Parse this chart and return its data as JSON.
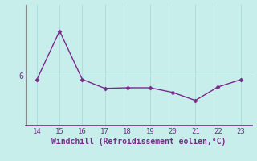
{
  "x": [
    14,
    15,
    16,
    17,
    18,
    19,
    20,
    21,
    22,
    23
  ],
  "y": [
    5.8,
    8.2,
    5.8,
    5.35,
    5.38,
    5.38,
    5.15,
    4.75,
    5.42,
    5.78
  ],
  "line_color": "#7B2A8B",
  "marker_color": "#7B2A8B",
  "bg_color": "#C8EEEC",
  "grid_color": "#B0DDDB",
  "xlabel": "Windchill (Refroidissement éolien,°C)",
  "xlabel_color": "#7B2A8B",
  "tick_color": "#7B2A8B",
  "spine_color": "#888888",
  "bottom_spine_color": "#7B2A8B",
  "ytick_label": "6",
  "ytick_value": 6.0,
  "xlim": [
    13.5,
    23.5
  ],
  "ylim": [
    3.5,
    9.5
  ],
  "xticks": [
    14,
    15,
    16,
    17,
    18,
    19,
    20,
    21,
    22,
    23
  ],
  "yticks": [
    6.0
  ]
}
